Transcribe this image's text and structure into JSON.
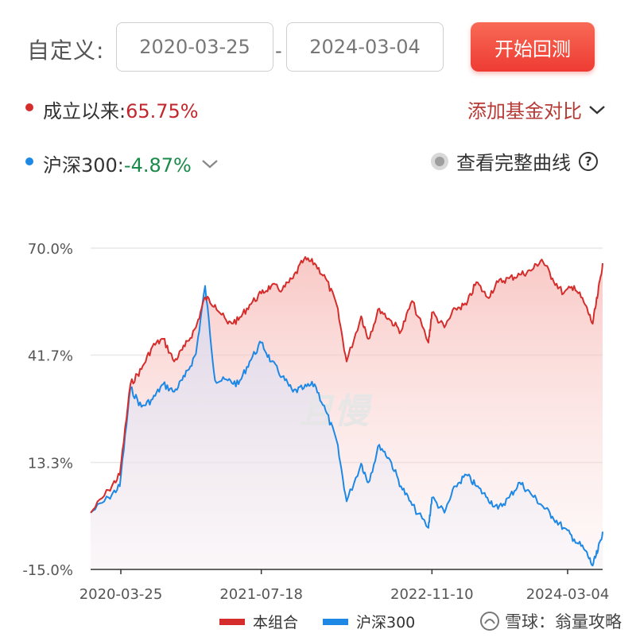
{
  "custom": {
    "label": "自定义:"
  },
  "range": {
    "start": "2020-03-25",
    "separator": "-",
    "end": "2024-03-04",
    "button": "开始回测"
  },
  "summary": {
    "portfolio_label": "成立以来:",
    "portfolio_value": "65.75%",
    "benchmark_label": "沪深300:",
    "benchmark_value": "-4.87%",
    "add_compare": "添加基金对比",
    "view_full": "查看完整曲线",
    "help_glyph": "?"
  },
  "legend": {
    "portfolio": "本组合",
    "benchmark": "沪深300"
  },
  "watermark": {
    "center": "且慢",
    "footer": "雪球：翁量攻略"
  },
  "colors": {
    "portfolio": "#d42d2b",
    "benchmark": "#1e88e5",
    "positive": "#c1272d",
    "negative": "#1a8a4a"
  },
  "chart_data": {
    "type": "line",
    "title": "",
    "xlabel": "",
    "ylabel": "",
    "y_ticks": [
      "70.0%",
      "41.7%",
      "13.3%",
      "-15.0%"
    ],
    "y_tick_values": [
      70.0,
      41.7,
      13.3,
      -15.0
    ],
    "ylim": [
      -15.0,
      70.0
    ],
    "x_ticks": [
      "2020-03-25",
      "2021-07-18",
      "2022-11-10",
      "2024-03-04"
    ],
    "x": [
      "2020-03-25",
      "2020-05-15",
      "2020-06-15",
      "2020-07-15",
      "2020-08-15",
      "2020-09-15",
      "2020-10-15",
      "2020-11-15",
      "2020-12-15",
      "2021-01-15",
      "2021-02-10",
      "2021-03-10",
      "2021-04-15",
      "2021-05-15",
      "2021-06-15",
      "2021-07-18",
      "2021-08-15",
      "2021-09-15",
      "2021-10-15",
      "2021-11-15",
      "2021-12-15",
      "2022-01-15",
      "2022-02-15",
      "2022-03-15",
      "2022-04-25",
      "2022-05-15",
      "2022-06-15",
      "2022-07-15",
      "2022-08-15",
      "2022-09-15",
      "2022-10-31",
      "2022-11-10",
      "2022-12-15",
      "2023-01-15",
      "2023-02-15",
      "2023-03-15",
      "2023-04-15",
      "2023-05-15",
      "2023-06-15",
      "2023-07-15",
      "2023-08-15",
      "2023-09-15",
      "2023-10-15",
      "2023-11-15",
      "2023-12-15",
      "2024-01-15",
      "2024-02-05",
      "2024-02-20",
      "2024-03-04"
    ],
    "series": [
      {
        "name": "本组合",
        "values": [
          0.0,
          6.0,
          10.0,
          34.0,
          38.0,
          44.0,
          46.0,
          40.0,
          44.0,
          49.0,
          57.0,
          55.0,
          50.0,
          51.0,
          55.0,
          58.0,
          60.0,
          59.0,
          62.0,
          67.0,
          66.0,
          62.0,
          55.0,
          40.0,
          52.0,
          46.0,
          54.0,
          51.0,
          48.0,
          56.0,
          45.0,
          53.0,
          49.0,
          54.0,
          55.0,
          61.0,
          57.0,
          61.0,
          62.0,
          63.0,
          64.0,
          67.0,
          62.0,
          58.0,
          60.0,
          55.0,
          50.0,
          58.0,
          66.0
        ]
      },
      {
        "name": "沪深300",
        "values": [
          0.0,
          4.0,
          7.0,
          33.0,
          28.0,
          30.0,
          34.0,
          32.0,
          36.0,
          42.0,
          60.0,
          35.0,
          35.0,
          34.0,
          40.0,
          45.0,
          40.0,
          36.0,
          32.0,
          33.0,
          34.0,
          27.0,
          19.0,
          3.0,
          13.0,
          8.0,
          18.0,
          14.0,
          7.0,
          2.0,
          -4.0,
          4.0,
          0.0,
          7.0,
          10.0,
          7.0,
          4.0,
          1.0,
          4.0,
          8.0,
          5.0,
          2.0,
          -1.0,
          -4.0,
          -7.0,
          -10.0,
          -14.0,
          -10.0,
          -5.0
        ]
      }
    ],
    "grid": true,
    "legend_position": "bottom"
  }
}
